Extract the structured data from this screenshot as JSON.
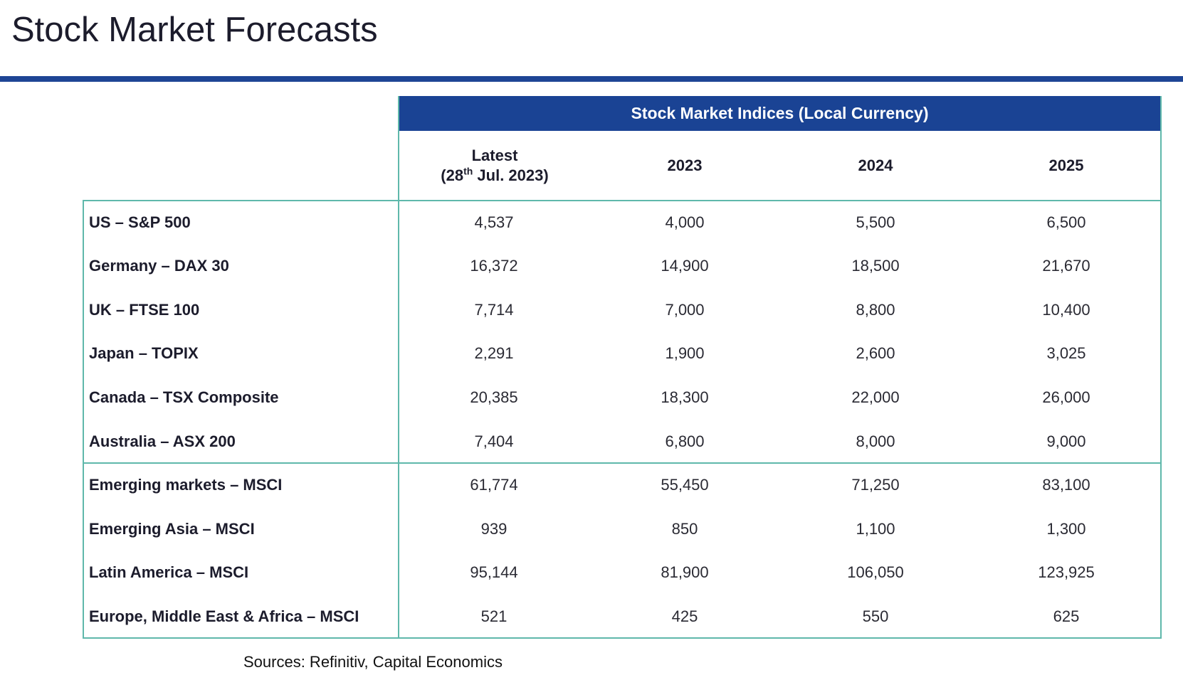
{
  "title": "Stock Market Forecasts",
  "table": {
    "group_header": "Stock Market Indices (Local Currency)",
    "columns": [
      {
        "line1": "Latest",
        "line2_pre": "(28",
        "line2_sup": "th",
        "line2_post": " Jul. 2023)"
      },
      {
        "line1": "2023"
      },
      {
        "line1": "2024"
      },
      {
        "line1": "2025"
      }
    ],
    "rows": [
      {
        "label": "US – S&P 500",
        "values": [
          "4,537",
          "4,000",
          "5,500",
          "6,500"
        ]
      },
      {
        "label": "Germany – DAX 30",
        "values": [
          "16,372",
          "14,900",
          "18,500",
          "21,670"
        ]
      },
      {
        "label": "UK – FTSE 100",
        "values": [
          "7,714",
          "7,000",
          "8,800",
          "10,400"
        ]
      },
      {
        "label": "Japan – TOPIX",
        "values": [
          "2,291",
          "1,900",
          "2,600",
          "3,025"
        ]
      },
      {
        "label": "Canada – TSX Composite",
        "values": [
          "20,385",
          "18,300",
          "22,000",
          "26,000"
        ]
      },
      {
        "label": "Australia – ASX 200",
        "values": [
          "7,404",
          "6,800",
          "8,000",
          "9,000"
        ]
      },
      {
        "label": "Emerging markets – MSCI",
        "values": [
          "61,774",
          "55,450",
          "71,250",
          "83,100"
        ]
      },
      {
        "label": "Emerging Asia – MSCI",
        "values": [
          "939",
          "850",
          "1,100",
          "1,300"
        ]
      },
      {
        "label": "Latin America – MSCI",
        "values": [
          "95,144",
          "81,900",
          "106,050",
          "123,925"
        ]
      },
      {
        "label": "Europe, Middle East & Africa – MSCI",
        "values": [
          "521",
          "425",
          "550",
          "625"
        ]
      }
    ]
  },
  "source": "Sources: Refinitiv, Capital Economics",
  "colors": {
    "accent_blue": "#1a4394",
    "border_teal": "#5fb8ab"
  }
}
